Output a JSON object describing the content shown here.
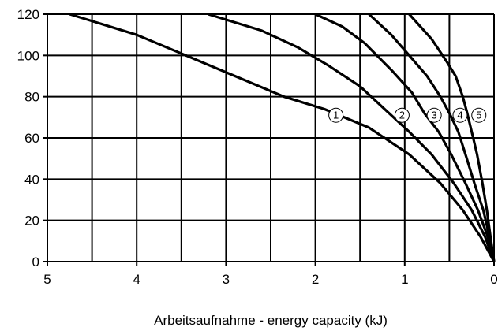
{
  "chart_data": {
    "type": "line",
    "title": "",
    "xlabel": "Arbeitsaufnahme - energy capacity (kJ)",
    "ylabel": "",
    "xlim": [
      5,
      0
    ],
    "ylim": [
      0,
      120
    ],
    "x_reversed": true,
    "grid": true,
    "x_ticks": [
      5,
      4,
      3,
      2,
      1,
      0
    ],
    "x_tick_labels": [
      "5",
      "4",
      "3",
      "2",
      "1",
      "0"
    ],
    "y_ticks": [
      0,
      20,
      40,
      60,
      80,
      100,
      120
    ],
    "y_tick_labels": [
      "0",
      "20",
      "40",
      "60",
      "80",
      "100",
      "120"
    ],
    "series": [
      {
        "label": "1",
        "points": [
          [
            0,
            0
          ],
          [
            0.15,
            12
          ],
          [
            0.35,
            25
          ],
          [
            0.6,
            38
          ],
          [
            0.95,
            52
          ],
          [
            1.4,
            65
          ],
          [
            1.9,
            74
          ],
          [
            2.35,
            80
          ],
          [
            2.9,
            90
          ],
          [
            3.45,
            100
          ],
          [
            4.0,
            110
          ],
          [
            4.75,
            120
          ]
        ]
      },
      {
        "label": "2",
        "points": [
          [
            0,
            0
          ],
          [
            0.1,
            12
          ],
          [
            0.25,
            25
          ],
          [
            0.45,
            38
          ],
          [
            0.7,
            52
          ],
          [
            0.95,
            63
          ],
          [
            1.25,
            75
          ],
          [
            1.5,
            85
          ],
          [
            1.85,
            95
          ],
          [
            2.2,
            104
          ],
          [
            2.6,
            112
          ],
          [
            3.2,
            120
          ]
        ]
      },
      {
        "label": "3",
        "points": [
          [
            0,
            0
          ],
          [
            0.07,
            12
          ],
          [
            0.18,
            25
          ],
          [
            0.32,
            38
          ],
          [
            0.48,
            52
          ],
          [
            0.62,
            63
          ],
          [
            0.78,
            72
          ],
          [
            0.92,
            82
          ],
          [
            1.15,
            93
          ],
          [
            1.45,
            106
          ],
          [
            1.7,
            114
          ],
          [
            2.0,
            120
          ]
        ]
      },
      {
        "label": "4",
        "points": [
          [
            0,
            0
          ],
          [
            0.05,
            12
          ],
          [
            0.12,
            25
          ],
          [
            0.22,
            38
          ],
          [
            0.32,
            52
          ],
          [
            0.4,
            63
          ],
          [
            0.5,
            72
          ],
          [
            0.6,
            80
          ],
          [
            0.75,
            90
          ],
          [
            0.95,
            100
          ],
          [
            1.15,
            110
          ],
          [
            1.4,
            120
          ]
        ]
      },
      {
        "label": "5",
        "points": [
          [
            0,
            0
          ],
          [
            0.04,
            12
          ],
          [
            0.08,
            25
          ],
          [
            0.13,
            38
          ],
          [
            0.19,
            52
          ],
          [
            0.25,
            63
          ],
          [
            0.3,
            72
          ],
          [
            0.35,
            80
          ],
          [
            0.43,
            90
          ],
          [
            0.53,
            97
          ],
          [
            0.7,
            108
          ],
          [
            0.95,
            120
          ]
        ]
      }
    ],
    "markers": [
      {
        "text": "1",
        "x": 1.77,
        "y": 71
      },
      {
        "text": "2",
        "x": 1.03,
        "y": 71
      },
      {
        "text": "3",
        "x": 0.67,
        "y": 71
      },
      {
        "text": "4",
        "x": 0.38,
        "y": 71
      },
      {
        "text": "5",
        "x": 0.17,
        "y": 71
      }
    ]
  }
}
